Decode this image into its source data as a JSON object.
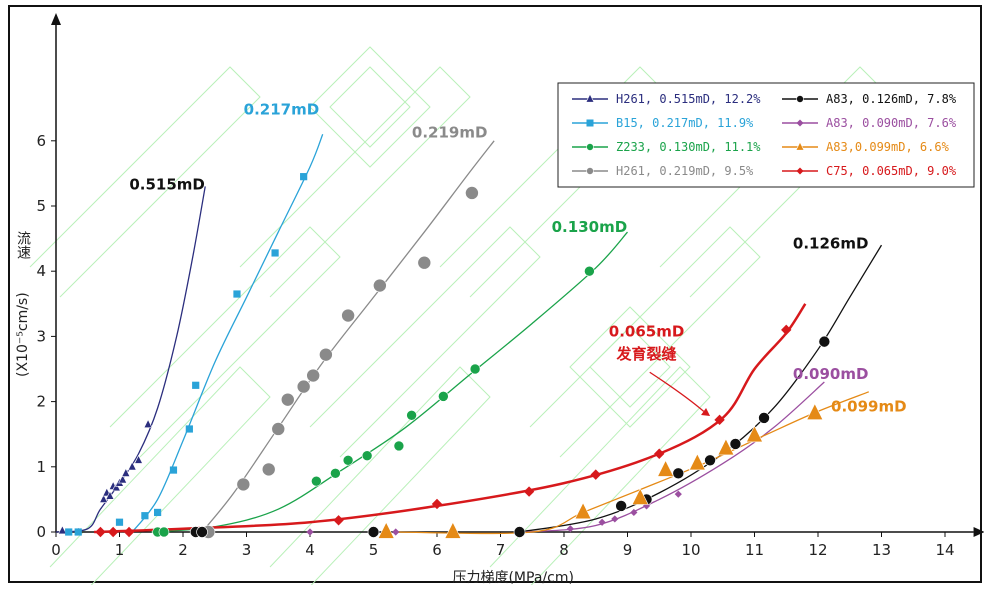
{
  "chart_data": {
    "type": "scatter",
    "xlabel": "压力梯度(MPa/cm)",
    "ylabel_cn": "流速",
    "ylabel_unit": "(X10⁻⁵cm/s)",
    "xlim": [
      0,
      14.5
    ],
    "ylim": [
      0,
      7
    ],
    "xticks": [
      0,
      1,
      2,
      3,
      4,
      5,
      6,
      7,
      8,
      9,
      10,
      11,
      12,
      13,
      14
    ],
    "yticks": [
      0,
      1,
      2,
      3,
      4,
      5,
      6
    ],
    "grid": false,
    "legend_position": "top-right",
    "series": [
      {
        "name": "H261, 0.515mD, 12.2%",
        "color": "#2b2e7e",
        "marker": "triangle",
        "points": [
          [
            0.1,
            0.02
          ],
          [
            0.35,
            0
          ],
          [
            0.75,
            0.5
          ],
          [
            0.8,
            0.6
          ],
          [
            0.85,
            0.55
          ],
          [
            0.9,
            0.7
          ],
          [
            0.95,
            0.68
          ],
          [
            1.0,
            0.75
          ],
          [
            1.05,
            0.8
          ],
          [
            1.1,
            0.9
          ],
          [
            1.2,
            1.0
          ],
          [
            1.3,
            1.1
          ],
          [
            1.45,
            1.65
          ]
        ],
        "curve": [
          [
            0,
            0
          ],
          [
            0.5,
            0.05
          ],
          [
            0.7,
            0.35
          ],
          [
            1.0,
            0.75
          ],
          [
            1.3,
            1.2
          ],
          [
            1.6,
            1.9
          ],
          [
            1.9,
            3.0
          ],
          [
            2.15,
            4.2
          ],
          [
            2.35,
            5.3
          ]
        ]
      },
      {
        "name": "B15, 0.217mD, 11.9%",
        "color": "#2aa3d8",
        "marker": "square",
        "points": [
          [
            0.2,
            0
          ],
          [
            0.35,
            0
          ],
          [
            1.0,
            0.15
          ],
          [
            1.4,
            0.25
          ],
          [
            1.6,
            0.3
          ],
          [
            1.85,
            0.95
          ],
          [
            2.1,
            1.58
          ],
          [
            2.2,
            2.25
          ],
          [
            2.85,
            3.65
          ],
          [
            3.45,
            4.28
          ],
          [
            3.9,
            5.45
          ]
        ],
        "curve": [
          [
            1.2,
            0
          ],
          [
            1.6,
            0.5
          ],
          [
            2.0,
            1.4
          ],
          [
            2.5,
            2.6
          ],
          [
            3.0,
            3.6
          ],
          [
            3.5,
            4.6
          ],
          [
            4.0,
            5.6
          ],
          [
            4.2,
            6.1
          ]
        ]
      },
      {
        "name": "Z233, 0.130mD, 11.1%",
        "color": "#1aa34a",
        "marker": "circle",
        "points": [
          [
            1.6,
            0
          ],
          [
            1.7,
            0
          ],
          [
            4.1,
            0.78
          ],
          [
            4.4,
            0.9
          ],
          [
            4.6,
            1.1
          ],
          [
            4.9,
            1.17
          ],
          [
            5.4,
            1.32
          ],
          [
            5.6,
            1.79
          ],
          [
            6.1,
            2.08
          ],
          [
            6.6,
            2.5
          ],
          [
            8.4,
            4.0
          ]
        ],
        "curve": [
          [
            1.5,
            0
          ],
          [
            2.5,
            0.08
          ],
          [
            3.5,
            0.35
          ],
          [
            4.5,
            0.95
          ],
          [
            5.5,
            1.6
          ],
          [
            6.5,
            2.4
          ],
          [
            7.5,
            3.2
          ],
          [
            8.5,
            4.05
          ],
          [
            9.0,
            4.6
          ]
        ]
      },
      {
        "name": "H261, 0.219mD, 9.5%",
        "color": "#8a8a8a",
        "marker": "circle",
        "points": [
          [
            2.4,
            0
          ],
          [
            2.95,
            0.73
          ],
          [
            3.35,
            0.96
          ],
          [
            3.5,
            1.58
          ],
          [
            3.65,
            2.03
          ],
          [
            3.9,
            2.23
          ],
          [
            4.05,
            2.4
          ],
          [
            4.25,
            2.72
          ],
          [
            4.6,
            3.32
          ],
          [
            5.1,
            3.78
          ],
          [
            5.8,
            4.13
          ],
          [
            6.55,
            5.2
          ]
        ],
        "curve": [
          [
            2.3,
            0
          ],
          [
            2.8,
            0.6
          ],
          [
            3.5,
            1.6
          ],
          [
            4.2,
            2.6
          ],
          [
            5.0,
            3.6
          ],
          [
            5.8,
            4.6
          ],
          [
            6.5,
            5.5
          ],
          [
            6.9,
            6.0
          ]
        ]
      },
      {
        "name": "A83, 0.126mD, 7.8%",
        "color": "#111111",
        "marker": "circle",
        "points": [
          [
            2.2,
            0
          ],
          [
            2.3,
            0
          ],
          [
            5.0,
            0
          ],
          [
            7.3,
            0
          ],
          [
            8.9,
            0.4
          ],
          [
            9.3,
            0.5
          ],
          [
            9.8,
            0.9
          ],
          [
            10.3,
            1.1
          ],
          [
            10.7,
            1.35
          ],
          [
            11.15,
            1.75
          ],
          [
            12.1,
            2.92
          ]
        ],
        "curve": [
          [
            7.3,
            0
          ],
          [
            8.5,
            0.2
          ],
          [
            9.5,
            0.6
          ],
          [
            10.5,
            1.2
          ],
          [
            11.3,
            1.9
          ],
          [
            12.0,
            2.8
          ],
          [
            12.5,
            3.6
          ],
          [
            13.0,
            4.4
          ]
        ]
      },
      {
        "name": "A83, 0.090mD, 7.6%",
        "color": "#9b4fa0",
        "marker": "diamond",
        "points": [
          [
            4.0,
            0
          ],
          [
            5.35,
            0
          ],
          [
            8.1,
            0.05
          ],
          [
            8.6,
            0.15
          ],
          [
            8.8,
            0.2
          ],
          [
            9.1,
            0.3
          ],
          [
            9.3,
            0.4
          ],
          [
            9.8,
            0.58
          ]
        ],
        "curve": [
          [
            7.4,
            0
          ],
          [
            8.5,
            0.1
          ],
          [
            9.5,
            0.5
          ],
          [
            10.5,
            1.05
          ],
          [
            11.3,
            1.6
          ],
          [
            12.1,
            2.3
          ]
        ]
      },
      {
        "name": "A83,0.099mD, 6.6%",
        "color": "#e58a16",
        "marker": "triangle",
        "points": [
          [
            5.2,
            0
          ],
          [
            6.25,
            0
          ],
          [
            8.3,
            0.3
          ],
          [
            9.2,
            0.52
          ],
          [
            9.6,
            0.95
          ],
          [
            10.1,
            1.05
          ],
          [
            10.55,
            1.28
          ],
          [
            11.0,
            1.48
          ],
          [
            11.95,
            1.82
          ]
        ],
        "curve": [
          [
            5.3,
            0
          ],
          [
            7.5,
            0
          ],
          [
            8.3,
            0.3
          ],
          [
            9.2,
            0.65
          ],
          [
            10.2,
            1.05
          ],
          [
            11.2,
            1.5
          ],
          [
            12.0,
            1.85
          ],
          [
            12.8,
            2.15
          ]
        ]
      },
      {
        "name": "C75, 0.065mD, 9.0%",
        "color": "#d7191c",
        "marker": "diamond",
        "points": [
          [
            0.7,
            0
          ],
          [
            0.9,
            0
          ],
          [
            1.15,
            0
          ],
          [
            4.45,
            0.18
          ],
          [
            6.0,
            0.43
          ],
          [
            7.45,
            0.62
          ],
          [
            8.5,
            0.88
          ],
          [
            9.5,
            1.2
          ],
          [
            10.45,
            1.72
          ],
          [
            11.5,
            3.1
          ]
        ],
        "curve": [
          [
            0.6,
            0
          ],
          [
            2.0,
            0.05
          ],
          [
            4.0,
            0.15
          ],
          [
            6.0,
            0.4
          ],
          [
            8.0,
            0.75
          ],
          [
            9.5,
            1.2
          ],
          [
            10.5,
            1.75
          ],
          [
            11.0,
            2.5
          ],
          [
            11.5,
            3.05
          ],
          [
            11.8,
            3.5
          ]
        ]
      }
    ],
    "annotations": [
      {
        "text": "0.515mD",
        "color": "#111111",
        "x": 1.75,
        "y": 5.25
      },
      {
        "text": "0.217mD",
        "color": "#2aa3d8",
        "x": 3.55,
        "y": 6.4
      },
      {
        "text": "0.219mD",
        "color": "#8a8a8a",
        "x": 6.2,
        "y": 6.05
      },
      {
        "text": "0.130mD",
        "color": "#1aa34a",
        "x": 8.4,
        "y": 4.6
      },
      {
        "text": "0.126mD",
        "color": "#111111",
        "x": 12.2,
        "y": 4.35
      },
      {
        "text": "0.065mD",
        "color": "#d7191c",
        "x": 9.3,
        "y": 3.0
      },
      {
        "text": "发育裂缝",
        "color": "#d7191c",
        "x": 9.3,
        "y": 2.65
      },
      {
        "text": "0.090mD",
        "color": "#9b4fa0",
        "x": 12.2,
        "y": 2.35
      },
      {
        "text": "0.099mD",
        "color": "#e58a16",
        "x": 12.8,
        "y": 1.85
      }
    ]
  }
}
